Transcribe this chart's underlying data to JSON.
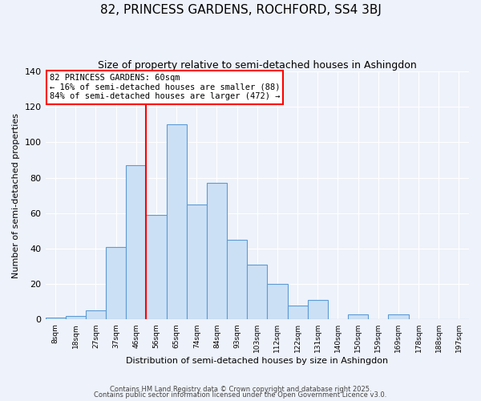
{
  "title": "82, PRINCESS GARDENS, ROCHFORD, SS4 3BJ",
  "subtitle": "Size of property relative to semi-detached houses in Ashingdon",
  "xlabel": "Distribution of semi-detached houses by size in Ashingdon",
  "ylabel": "Number of semi-detached properties",
  "bin_labels": [
    "8sqm",
    "18sqm",
    "27sqm",
    "37sqm",
    "46sqm",
    "56sqm",
    "65sqm",
    "74sqm",
    "84sqm",
    "93sqm",
    "103sqm",
    "112sqm",
    "122sqm",
    "131sqm",
    "140sqm",
    "150sqm",
    "159sqm",
    "169sqm",
    "178sqm",
    "188sqm",
    "197sqm"
  ],
  "bar_values": [
    1,
    2,
    5,
    41,
    87,
    59,
    110,
    65,
    77,
    45,
    31,
    20,
    8,
    11,
    0,
    3,
    0,
    3,
    0,
    0,
    0
  ],
  "bar_color": "#cce0f5",
  "bar_edge_color": "#5b9bd5",
  "vline_x_index": 5,
  "vline_color": "red",
  "annotation_text": "82 PRINCESS GARDENS: 60sqm\n← 16% of semi-detached houses are smaller (88)\n84% of semi-detached houses are larger (472) →",
  "annotation_box_color": "white",
  "annotation_box_edge": "red",
  "ylim": [
    0,
    140
  ],
  "yticks": [
    0,
    20,
    40,
    60,
    80,
    100,
    120,
    140
  ],
  "footer1": "Contains HM Land Registry data © Crown copyright and database right 2025.",
  "footer2": "Contains public sector information licensed under the Open Government Licence v3.0.",
  "bg_color": "#eef2fa"
}
